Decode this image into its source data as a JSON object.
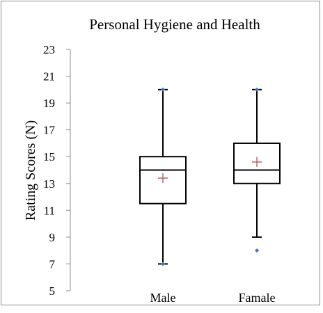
{
  "chart_data": {
    "type": "box",
    "title": "Personal Hygiene and Health",
    "xlabel": "",
    "ylabel": "Rating Scores (N)",
    "ylim": [
      5,
      23
    ],
    "yticks": [
      5,
      7,
      9,
      11,
      13,
      15,
      17,
      19,
      21,
      23
    ],
    "categories": [
      "Male",
      "Famale"
    ],
    "grid": false,
    "legend": "none",
    "boxes": [
      {
        "category": "Male",
        "whisker_low": 7,
        "q1": 11.5,
        "median": 14,
        "q3": 15,
        "whisker_high": 20,
        "mean": 13.4,
        "outliers": [
          7,
          20
        ]
      },
      {
        "category": "Famale",
        "whisker_low": 9,
        "q1": 13,
        "median": 14,
        "q3": 16,
        "whisker_high": 20,
        "mean": 14.6,
        "outliers": [
          8,
          20
        ]
      }
    ],
    "colors": {
      "box": "#000000",
      "mean": "#c0504d",
      "outlier": "#4472c4",
      "axis": "#8c8c8c"
    }
  }
}
